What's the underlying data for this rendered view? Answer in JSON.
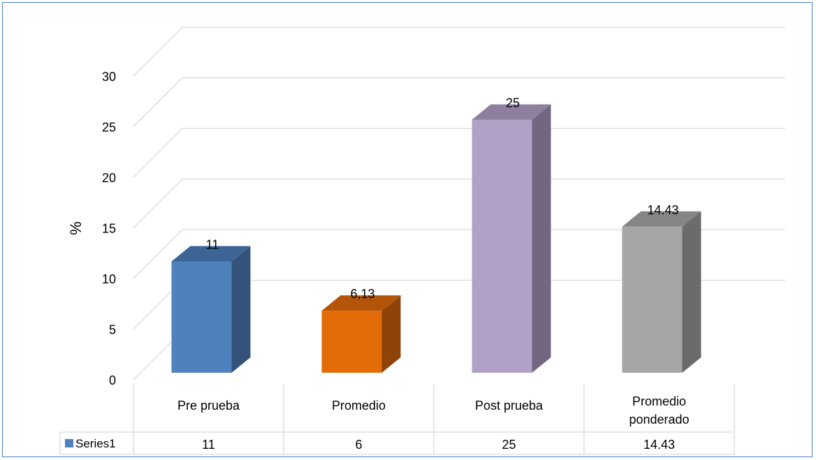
{
  "chart_data": {
    "type": "bar",
    "style": "3d-column-with-data-table",
    "categories": [
      "Pre prueba",
      "Promedio",
      "Post prueba",
      "Promedio ponderado"
    ],
    "series": [
      {
        "name": "Series1",
        "values": [
          11,
          6.13,
          25,
          14.43
        ],
        "data_labels": [
          "11",
          "6,13",
          "25",
          "14.43"
        ],
        "table_values": [
          "11",
          "6",
          "25",
          "14.43"
        ],
        "colors": [
          "#4f81bd",
          "#e36c09",
          "#b2a1c7",
          "#a6a6a6"
        ],
        "side_colors": [
          "#34527a",
          "#8f4407",
          "#736681",
          "#6b6b6b"
        ],
        "top_colors": [
          "#3c6596",
          "#b35508",
          "#8e7f9f",
          "#858585"
        ]
      }
    ],
    "title": "",
    "xlabel": "",
    "ylabel": "%",
    "ylim": [
      0,
      30
    ],
    "yticks": [
      0,
      5,
      10,
      15,
      20,
      25,
      30
    ],
    "grid": true,
    "legend": "in data table"
  }
}
